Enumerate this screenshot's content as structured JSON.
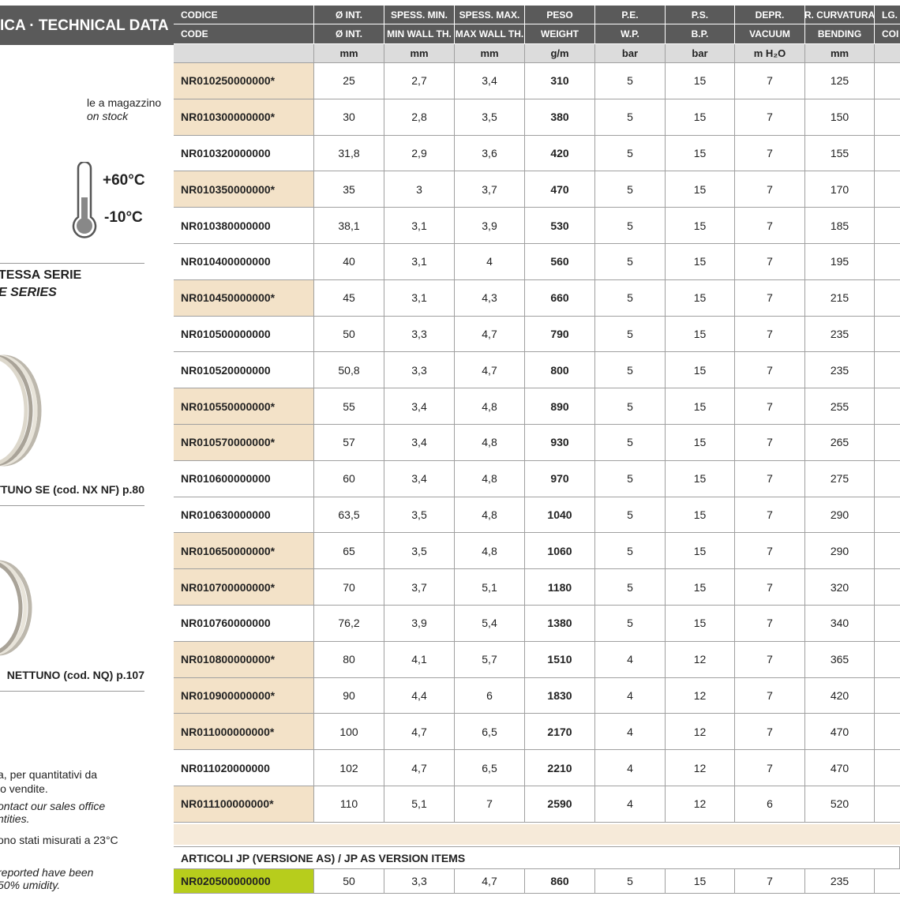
{
  "sidebar": {
    "title": "ICA · TECHNICAL DATA",
    "stock_it": "le a magazzino",
    "stock_en": "on stock",
    "temp_max": "+60°C",
    "temp_min": "-10°C",
    "series_it": "TESSA SERIE",
    "series_en": "E SERIES",
    "link1": "TTUNO SE (cod. NX NF) p.80",
    "link2": "NETTUNO (cod. NQ) p.107",
    "notes_it": [
      "a, per quantitativi da",
      "io vendite.",
      "ono stati misurati a 23°C"
    ],
    "notes_en": [
      "ontact our sales office",
      "ntities.",
      "reported have been",
      "50% umidity."
    ]
  },
  "table": {
    "headers_it": [
      "CODICE",
      "Ø INT.",
      "SPESS. MIN.",
      "SPESS. MAX.",
      "PESO",
      "P.E.",
      "P.S.",
      "DEPR.",
      "R. CURVATURA",
      "LG."
    ],
    "headers_en": [
      "CODE",
      "Ø INT.",
      "MIN WALL TH.",
      "MAX WALL TH.",
      "WEIGHT",
      "W.P.",
      "B.P.",
      "VACUUM",
      "BENDING",
      "COI"
    ],
    "units": [
      "mm",
      "mm",
      "mm",
      "g/m",
      "bar",
      "bar",
      "m H₂O",
      "mm"
    ],
    "stock_color": "#f3e2c8",
    "bold_column": 4,
    "rows": [
      [
        "NR010250000000*",
        "25",
        "2,7",
        "3,4",
        "310",
        "5",
        "15",
        "7",
        "125"
      ],
      [
        "NR010300000000*",
        "30",
        "2,8",
        "3,5",
        "380",
        "5",
        "15",
        "7",
        "150"
      ],
      [
        "NR010320000000",
        "31,8",
        "2,9",
        "3,6",
        "420",
        "5",
        "15",
        "7",
        "155"
      ],
      [
        "NR010350000000*",
        "35",
        "3",
        "3,7",
        "470",
        "5",
        "15",
        "7",
        "170"
      ],
      [
        "NR010380000000",
        "38,1",
        "3,1",
        "3,9",
        "530",
        "5",
        "15",
        "7",
        "185"
      ],
      [
        "NR010400000000",
        "40",
        "3,1",
        "4",
        "560",
        "5",
        "15",
        "7",
        "195"
      ],
      [
        "NR010450000000*",
        "45",
        "3,1",
        "4,3",
        "660",
        "5",
        "15",
        "7",
        "215"
      ],
      [
        "NR010500000000",
        "50",
        "3,3",
        "4,7",
        "790",
        "5",
        "15",
        "7",
        "235"
      ],
      [
        "NR010520000000",
        "50,8",
        "3,3",
        "4,7",
        "800",
        "5",
        "15",
        "7",
        "235"
      ],
      [
        "NR010550000000*",
        "55",
        "3,4",
        "4,8",
        "890",
        "5",
        "15",
        "7",
        "255"
      ],
      [
        "NR010570000000*",
        "57",
        "3,4",
        "4,8",
        "930",
        "5",
        "15",
        "7",
        "265"
      ],
      [
        "NR010600000000",
        "60",
        "3,4",
        "4,8",
        "970",
        "5",
        "15",
        "7",
        "275"
      ],
      [
        "NR010630000000",
        "63,5",
        "3,5",
        "4,8",
        "1040",
        "5",
        "15",
        "7",
        "290"
      ],
      [
        "NR010650000000*",
        "65",
        "3,5",
        "4,8",
        "1060",
        "5",
        "15",
        "7",
        "290"
      ],
      [
        "NR010700000000*",
        "70",
        "3,7",
        "5,1",
        "1180",
        "5",
        "15",
        "7",
        "320"
      ],
      [
        "NR010760000000",
        "76,2",
        "3,9",
        "5,4",
        "1380",
        "5",
        "15",
        "7",
        "340"
      ],
      [
        "NR010800000000*",
        "80",
        "4,1",
        "5,7",
        "1510",
        "4",
        "12",
        "7",
        "365"
      ],
      [
        "NR010900000000*",
        "90",
        "4,4",
        "6",
        "1830",
        "4",
        "12",
        "7",
        "420"
      ],
      [
        "NR011000000000*",
        "100",
        "4,7",
        "6,5",
        "2170",
        "4",
        "12",
        "7",
        "470"
      ],
      [
        "NR011020000000",
        "102",
        "4,7",
        "6,5",
        "2210",
        "4",
        "12",
        "7",
        "470"
      ],
      [
        "NR011100000000*",
        "110",
        "5,1",
        "7",
        "2590",
        "4",
        "12",
        "6",
        "520"
      ]
    ],
    "jp_title": "ARTICOLI JP (VERSIONE AS) / JP AS VERSION ITEMS",
    "jp_color": "#b7cd1c",
    "jp_row": [
      "NR020500000000",
      "50",
      "3,3",
      "4,7",
      "860",
      "5",
      "15",
      "7",
      "235"
    ]
  }
}
